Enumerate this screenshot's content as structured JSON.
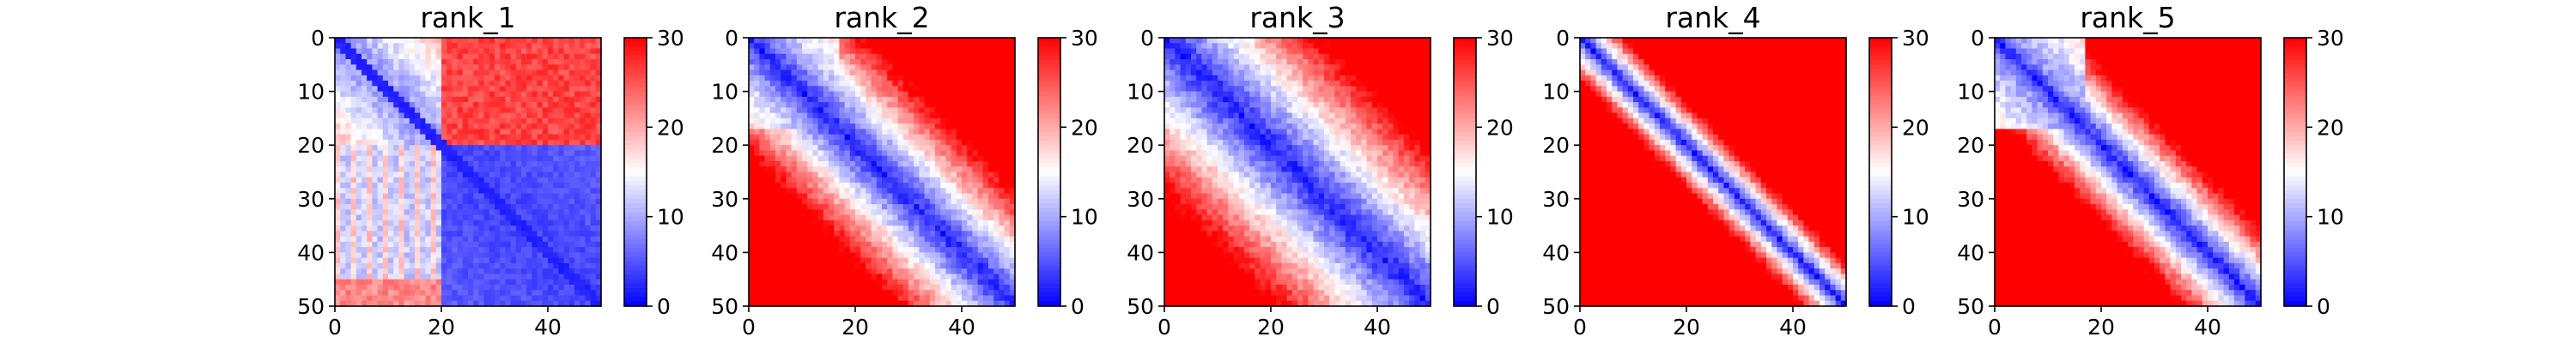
{
  "chart_data": [
    {
      "type": "heatmap",
      "title": "rank_1",
      "xlim": [
        0,
        50
      ],
      "ylim": [
        50,
        0
      ],
      "xticks": [
        "0",
        "20",
        "40"
      ],
      "yticks": [
        "0",
        "10",
        "20",
        "30",
        "40",
        "50"
      ],
      "colorbar": {
        "min": 0,
        "max": 30,
        "ticks": [
          "0",
          "10",
          "20",
          "30"
        ],
        "colormap": "bwr"
      },
      "grid_size": 50,
      "pattern": {
        "diag_slope": 0.25,
        "high_block": [
          0,
          20,
          20,
          50
        ],
        "high_value": 27,
        "low_block": [
          20,
          50,
          20,
          50
        ],
        "low_value": 5,
        "mid_band": [
          0,
          20,
          0,
          20
        ],
        "band_value": 12
      }
    },
    {
      "type": "heatmap",
      "title": "rank_2",
      "xlim": [
        0,
        50
      ],
      "ylim": [
        50,
        0
      ],
      "xticks": [
        "0",
        "20",
        "40"
      ],
      "yticks": [
        "0",
        "10",
        "20",
        "30",
        "40",
        "50"
      ],
      "colorbar": {
        "min": 0,
        "max": 30,
        "ticks": [
          "0",
          "10",
          "20",
          "30"
        ],
        "colormap": "bwr"
      },
      "grid_size": 50,
      "pattern": {
        "diag_slope": 0.6,
        "block_edge": 17,
        "offset": 2
      }
    },
    {
      "type": "heatmap",
      "title": "rank_3",
      "xlim": [
        0,
        50
      ],
      "ylim": [
        50,
        0
      ],
      "xticks": [
        "0",
        "20",
        "40"
      ],
      "yticks": [
        "0",
        "10",
        "20",
        "30",
        "40",
        "50"
      ],
      "colorbar": {
        "min": 0,
        "max": 30,
        "ticks": [
          "0",
          "10",
          "20",
          "30"
        ],
        "colormap": "bwr"
      },
      "grid_size": 50,
      "pattern": {
        "diag_slope": 0.45,
        "block_edge": 17,
        "offset": 0
      }
    },
    {
      "type": "heatmap",
      "title": "rank_4",
      "xlim": [
        0,
        50
      ],
      "ylim": [
        50,
        0
      ],
      "xticks": [
        "0",
        "20",
        "40"
      ],
      "yticks": [
        "0",
        "10",
        "20",
        "30",
        "40",
        "50"
      ],
      "colorbar": {
        "min": 0,
        "max": 30,
        "ticks": [
          "0",
          "10",
          "20",
          "30"
        ],
        "colormap": "bwr"
      },
      "grid_size": 50,
      "pattern": {
        "diag_slope": 1.6,
        "block_edge": 0,
        "offset": 0
      }
    },
    {
      "type": "heatmap",
      "title": "rank_5",
      "xlim": [
        0,
        50
      ],
      "ylim": [
        50,
        0
      ],
      "xticks": [
        "0",
        "20",
        "40"
      ],
      "yticks": [
        "0",
        "10",
        "20",
        "30",
        "40",
        "50"
      ],
      "colorbar": {
        "min": 0,
        "max": 30,
        "ticks": [
          "0",
          "10",
          "20",
          "30"
        ],
        "colormap": "bwr"
      },
      "grid_size": 50,
      "pattern": {
        "diag_slope": 0.9,
        "block_edge": 17,
        "offset": 1
      }
    }
  ]
}
